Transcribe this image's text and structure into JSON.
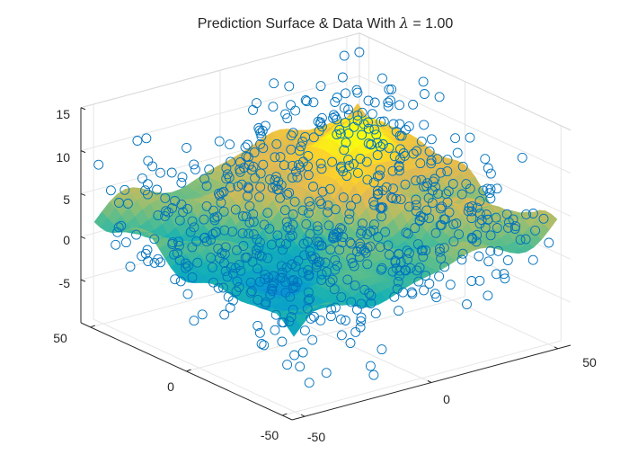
{
  "chart_data": {
    "type": "surface3d",
    "title_prefix": "Prediction Surface & Data With ",
    "title_symbol": "λ",
    "title_suffix": " = 1.00",
    "lambda": 1.0,
    "x_ticks": [
      "-50",
      "0",
      "50"
    ],
    "y_ticks": [
      "-50",
      "0",
      "50"
    ],
    "z_ticks": [
      "15",
      "10",
      "5",
      "0",
      "-5"
    ],
    "xlim": [
      -55,
      55
    ],
    "ylim": [
      -55,
      55
    ],
    "zlim": [
      -10,
      15
    ],
    "grid": true,
    "colormap": "parula",
    "surface_range": [
      -6,
      9
    ],
    "scatter": {
      "marker": "circle-open",
      "color": "#0072BD",
      "count_shown": 700,
      "noise_sd": 3.5
    }
  }
}
